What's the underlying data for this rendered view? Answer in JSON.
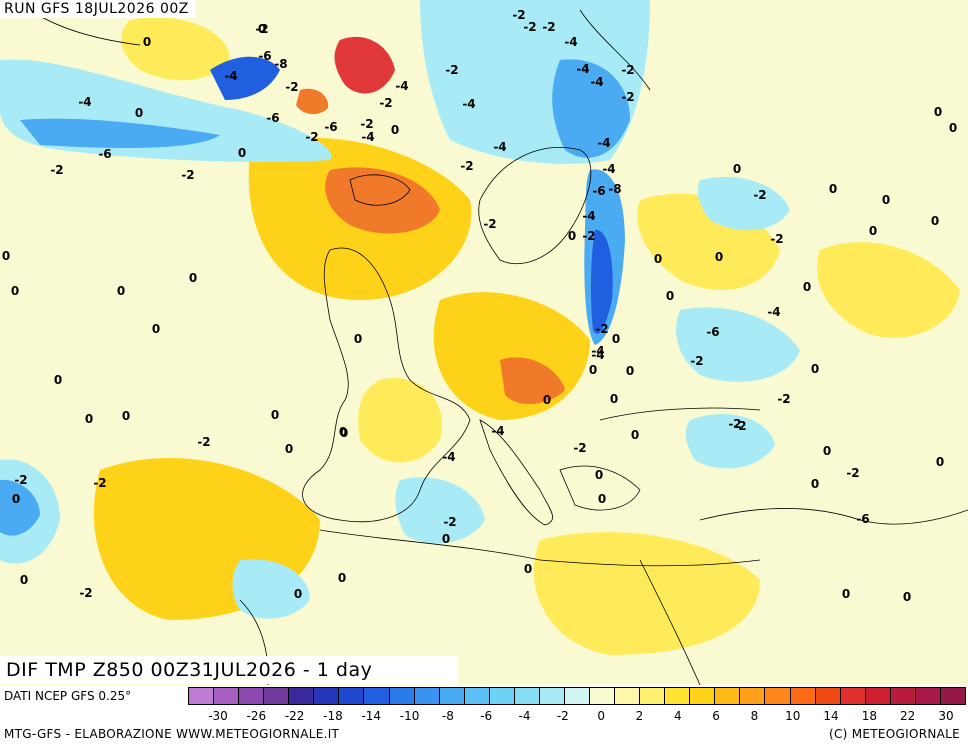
{
  "header": {
    "run_title": "RUN GFS 18JUL2026 00Z",
    "main_title": "DIF TMP Z850 00Z31JUL2026 - 1 day"
  },
  "footer": {
    "data_source": "DATI NCEP GFS 0.25°",
    "credits_left": "MTG-GFS - ELABORAZIONE WWW.METEOGIORNALE.IT",
    "credits_right": "(C) METEOGIORNALE"
  },
  "color_scale": {
    "colors": [
      "#c07bd5",
      "#a65fc2",
      "#8c4ab0",
      "#703a9e",
      "#3a2a9c",
      "#2735b8",
      "#1f47d0",
      "#1f5fe0",
      "#2a7ae8",
      "#3a93ef",
      "#4aaaf2",
      "#5cc0f5",
      "#6ed2f6",
      "#86def5",
      "#a8ebf6",
      "#d2f5f4",
      "#fafad2",
      "#fff7a8",
      "#fff070",
      "#ffe433",
      "#ffd21a",
      "#ffba1a",
      "#ffa01a",
      "#ff861a",
      "#ff6a16",
      "#f04a14",
      "#e03030",
      "#cc2030",
      "#b81c3c",
      "#a8194a",
      "#941848"
    ],
    "tick_labels": [
      "-30",
      "-26",
      "-22",
      "-18",
      "-14",
      "-10",
      "-8",
      "-6",
      "-4",
      "-2",
      "0",
      "2",
      "4",
      "6",
      "8",
      "10",
      "14",
      "18",
      "22",
      "30"
    ]
  },
  "map": {
    "anomaly_colors": {
      "deep_warm": "#f07a2a",
      "warm": "#ffd21a",
      "mild_warm": "#ffeb5a",
      "neutral": "#fafad2",
      "cool": "#a8ebf6",
      "cold": "#4aaaf2",
      "very_cold": "#1f5fe0",
      "hot_spot": "#e03838"
    },
    "contour_labels": [
      "-2",
      "-2",
      "-2",
      "-2",
      "-4",
      "0",
      "-6",
      "-8",
      "-4",
      "-2",
      "-4",
      "-2",
      "-4",
      "-2",
      "-4",
      "-2",
      "-4",
      "0",
      "-4",
      "-2",
      "-6",
      "-4",
      "-6",
      "-2",
      "-2",
      "-6",
      "-2",
      "-4",
      "0",
      "0",
      "-2",
      "-2",
      "-4",
      "-4",
      "-6",
      "-8",
      "-2",
      "0",
      "0",
      "-4",
      "-2",
      "-2",
      "-4",
      "0",
      "-2",
      "0",
      "0",
      "0",
      "0",
      "0",
      "0",
      "0",
      "0",
      "0",
      "0",
      "0",
      "0",
      "0",
      "0",
      "0",
      "0",
      "-2",
      "0",
      "-6",
      "-4",
      "-2",
      "-4",
      "-2",
      "-2",
      "0",
      "0",
      "0",
      "0",
      "-4",
      "-2",
      "0",
      "0",
      "0",
      "0",
      "-2",
      "0",
      "-4",
      "0",
      "0",
      "-2",
      "0",
      "-2",
      "0",
      "0",
      "-6",
      "-2",
      "-2",
      "0",
      "0",
      "0",
      "0",
      "-2",
      "0",
      "0",
      "0",
      "0",
      "0",
      "-2",
      "0",
      "0",
      "0"
    ]
  }
}
